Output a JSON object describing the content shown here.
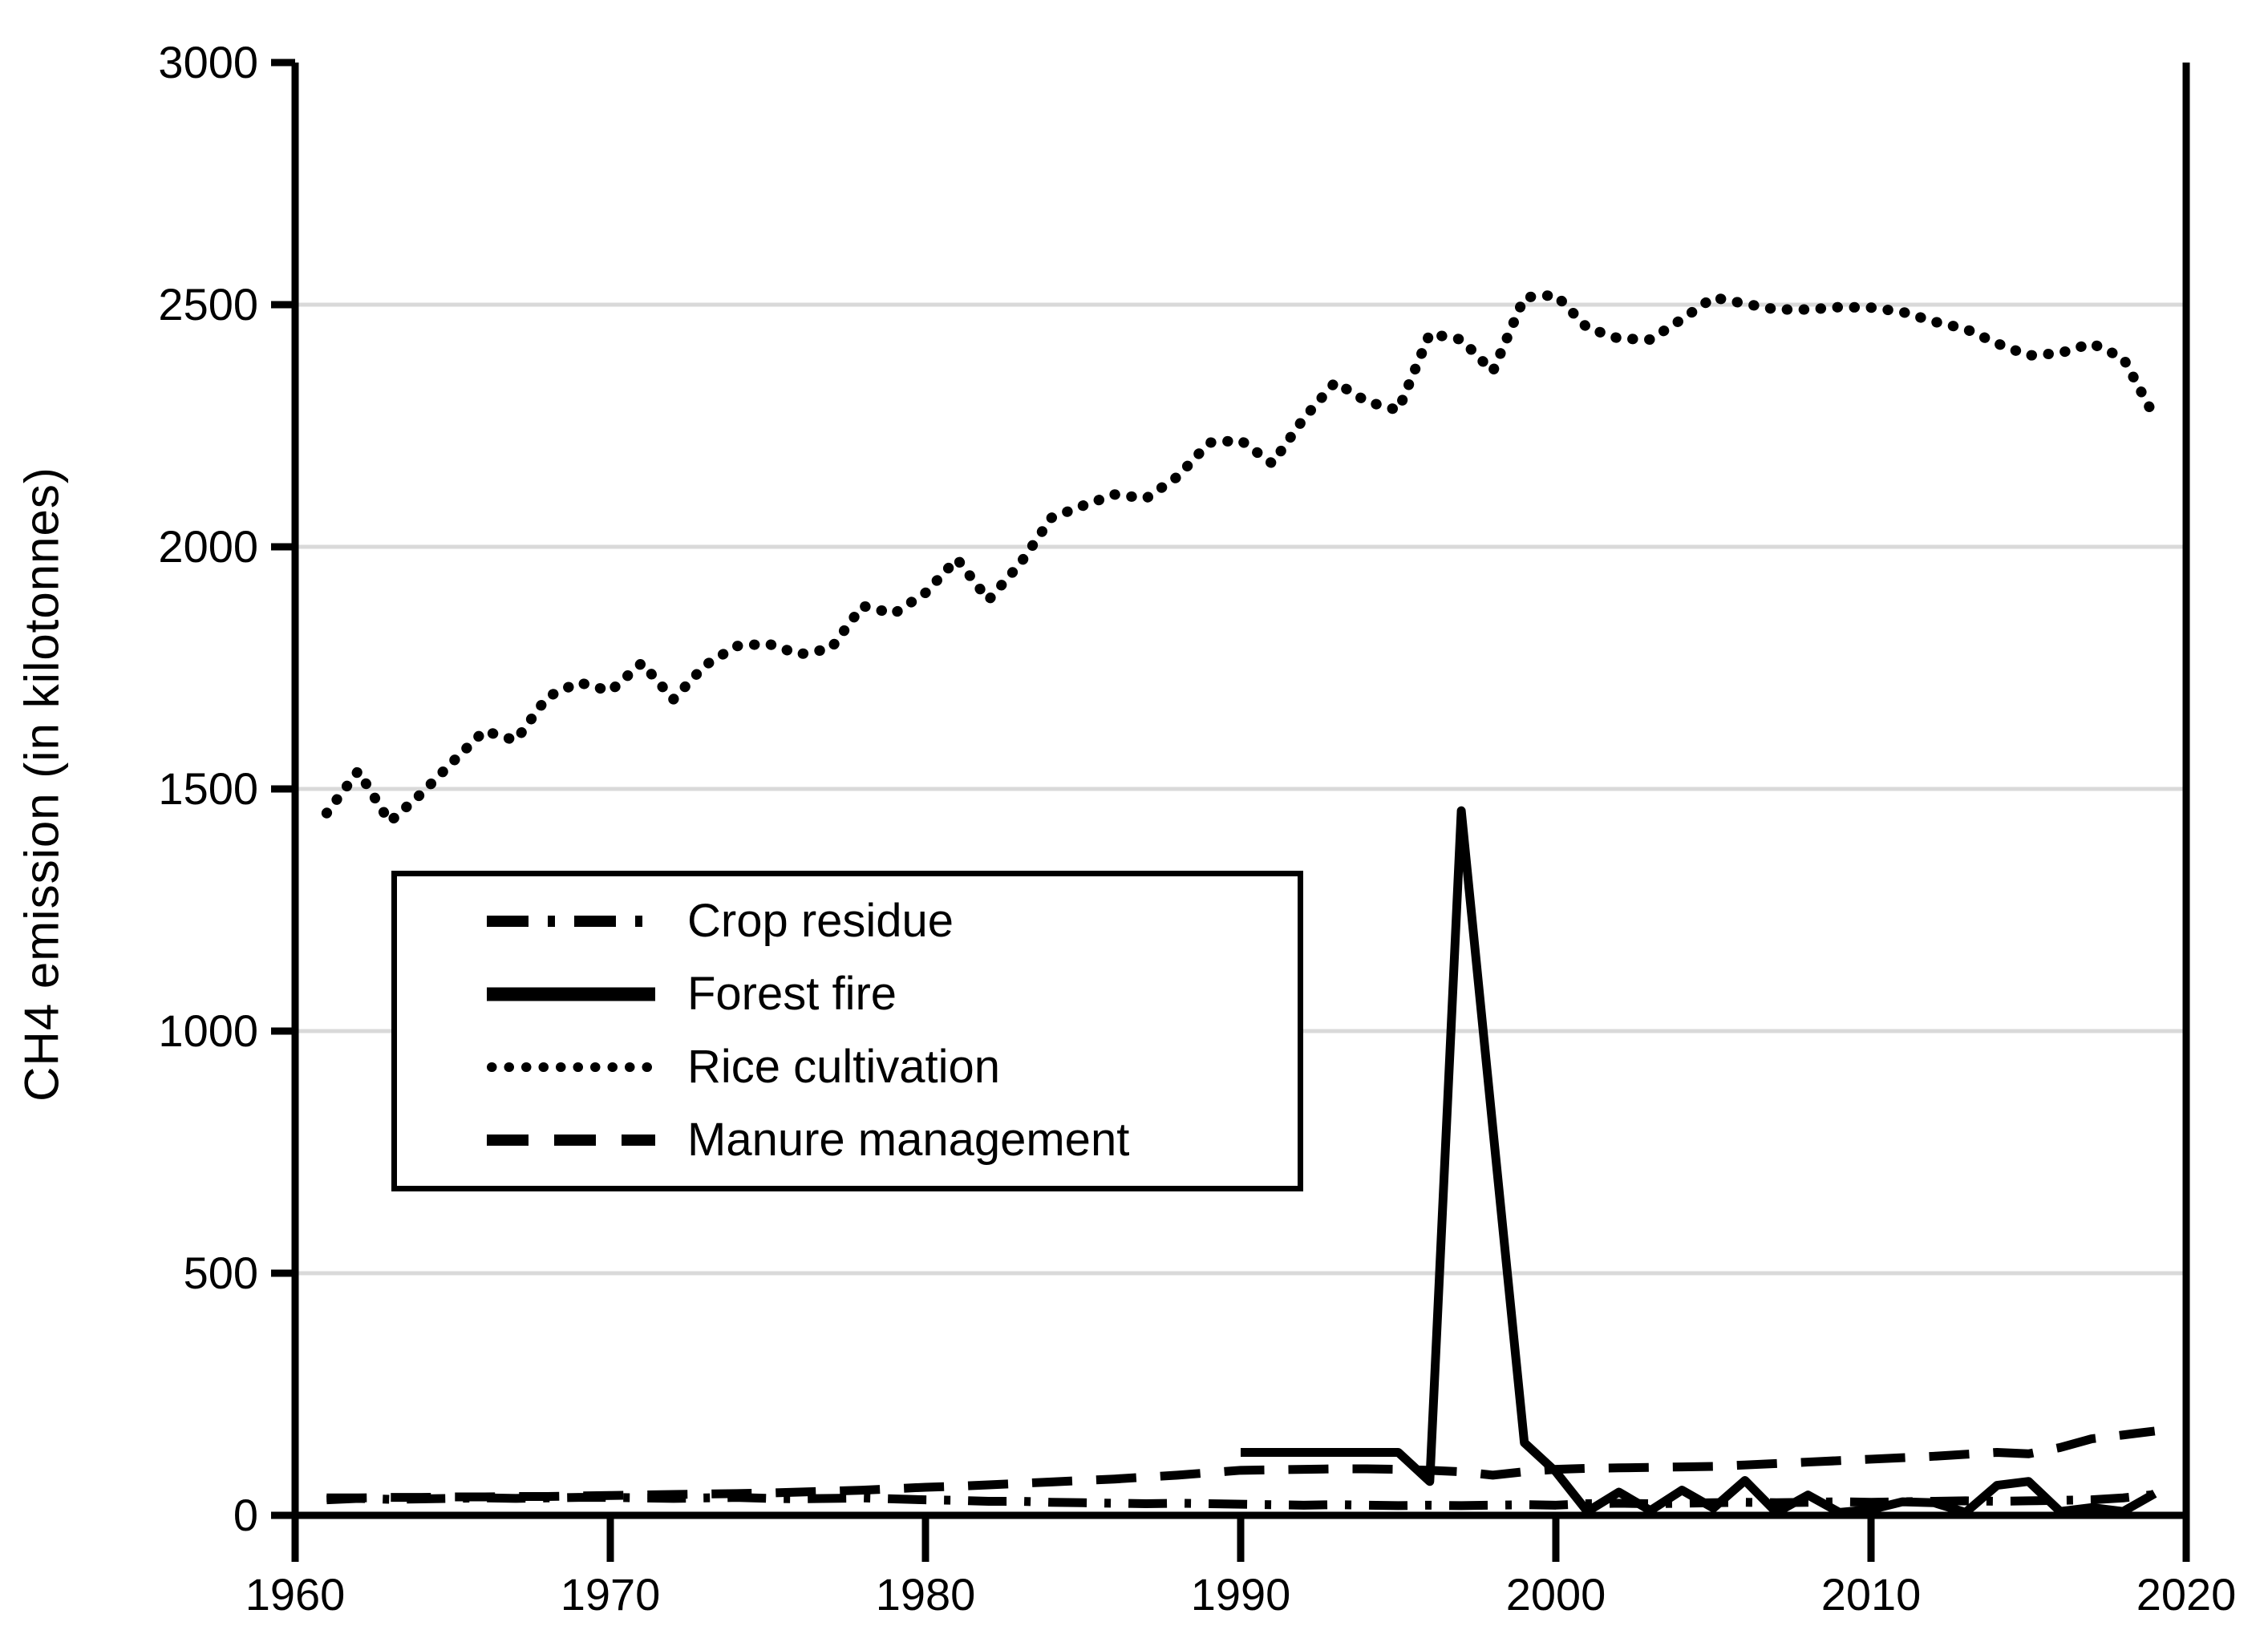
{
  "chart_data": {
    "type": "line",
    "title": "",
    "xlabel": "",
    "ylabel": "CH4 emission  (in kilotonnes)",
    "xlim": [
      1960,
      2020
    ],
    "ylim": [
      0,
      3000
    ],
    "x_ticks": [
      1960,
      1970,
      1980,
      1990,
      2000,
      2010,
      2020
    ],
    "y_ticks": [
      0,
      500,
      1000,
      1500,
      2000,
      2500,
      3000
    ],
    "grid": "horizontal-gray",
    "legend_position": "inside-middle-left",
    "colors": {
      "line": "#000000",
      "grid": "#d9d9d9",
      "background": "#ffffff"
    },
    "series": [
      {
        "name": "Crop residue",
        "style": "dash-dot",
        "x_start": 1961,
        "values": [
          32,
          35,
          33,
          34,
          35,
          36,
          35,
          36,
          37,
          37,
          36,
          35,
          36,
          37,
          35,
          34,
          35,
          36,
          34,
          32,
          31,
          29,
          29,
          27,
          26,
          25,
          24,
          25,
          24,
          23,
          22,
          21,
          22,
          21,
          20,
          21,
          20,
          21,
          22,
          21,
          24,
          25,
          24,
          25,
          26,
          27,
          26,
          27,
          28,
          27,
          28,
          29,
          30,
          29,
          30,
          31,
          32,
          36,
          43
        ]
      },
      {
        "name": "Forest fire",
        "style": "solid",
        "x_start": 1990,
        "values": [
          130,
          130,
          130,
          130,
          130,
          130,
          70,
          1455,
          800,
          150,
          90,
          8,
          48,
          10,
          52,
          15,
          72,
          6,
          42,
          6,
          12,
          28,
          26,
          6,
          62,
          70,
          8,
          16,
          8,
          45
        ]
      },
      {
        "name": "Rice cultivation",
        "style": "dotted",
        "x_start": 1961,
        "values": [
          1450,
          1537,
          1432,
          1490,
          1556,
          1620,
          1600,
          1690,
          1720,
          1702,
          1760,
          1685,
          1755,
          1795,
          1800,
          1778,
          1790,
          1878,
          1862,
          1905,
          1975,
          1890,
          1965,
          2060,
          2085,
          2108,
          2100,
          2145,
          2215,
          2220,
          2172,
          2265,
          2340,
          2300,
          2282,
          2440,
          2428,
          2362,
          2515,
          2520,
          2452,
          2430,
          2428,
          2470,
          2515,
          2502,
          2490,
          2490,
          2495,
          2494,
          2485,
          2465,
          2450,
          2420,
          2395,
          2400,
          2420,
          2390,
          2268
        ]
      },
      {
        "name": "Manure management",
        "style": "dashed",
        "x_start": 1961,
        "values": [
          36,
          36,
          37,
          37,
          38,
          38,
          39,
          39,
          40,
          41,
          42,
          43,
          44,
          45,
          46,
          48,
          50,
          52,
          55,
          58,
          60,
          63,
          66,
          69,
          72,
          75,
          79,
          83,
          88,
          93,
          94,
          95,
          96,
          96,
          95,
          93,
          90,
          83,
          90,
          95,
          97,
          98,
          99,
          100,
          101,
          104,
          107,
          110,
          113,
          116,
          119,
          122,
          126,
          130,
          127,
          140,
          158,
          166,
          174
        ]
      }
    ]
  }
}
